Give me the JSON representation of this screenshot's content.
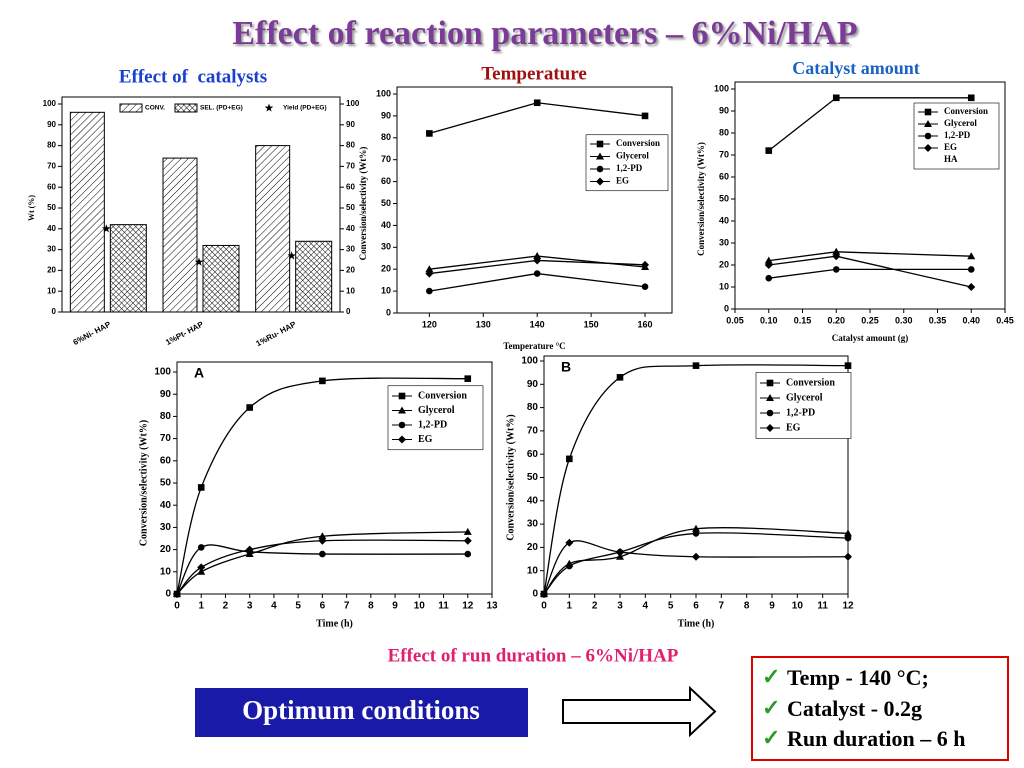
{
  "title": "Effect of reaction parameters – 6%Ni/HAP",
  "caption": "Effect of run duration – 6%Ni/HAP",
  "button": "Optimum conditions",
  "conditions": [
    "Temp - 140 °C;",
    "Catalyst - 0.2g",
    "Run duration – 6 h"
  ],
  "chart_data": [
    {
      "type": "bar",
      "title": "Effect of  catalysts",
      "ylabel": "Wt (%)",
      "categories": [
        "6%Ni- HAP",
        "1%Pt- HAP",
        "1%Ru- HAP"
      ],
      "series": [
        {
          "name": "CONV.",
          "pattern": "hatch",
          "values": [
            96,
            74,
            80
          ]
        },
        {
          "name": "SEL. (PD+EG)",
          "pattern": "crosshatch",
          "values": [
            42,
            32,
            34
          ]
        },
        {
          "name": "Yield (PD+EG)",
          "marker": "star",
          "values": [
            40,
            24,
            27
          ]
        }
      ],
      "ylim": [
        0,
        100
      ],
      "yticks": [
        0,
        10,
        20,
        30,
        40,
        50,
        60,
        70,
        80,
        90,
        100
      ],
      "y2lim": [
        0,
        100
      ],
      "y2ticks": [
        0,
        10,
        20,
        30,
        40,
        50,
        60,
        70,
        80,
        90,
        100
      ]
    },
    {
      "type": "line",
      "title": "Temperature",
      "xlabel": "Temperature °C",
      "ylabel": "Conversion/selectivity (Wt%)",
      "x": [
        120,
        140,
        160
      ],
      "xlim": [
        114,
        165
      ],
      "xticks": [
        120,
        130,
        140,
        150,
        160
      ],
      "ylim": [
        0,
        100
      ],
      "yticks": [
        0,
        10,
        20,
        30,
        40,
        50,
        60,
        70,
        80,
        90,
        100
      ],
      "series": [
        {
          "name": "Conversion",
          "marker": "square",
          "color": "#000000",
          "values": [
            82,
            96,
            90
          ]
        },
        {
          "name": "Glycerol",
          "marker": "triangle",
          "color": "#000000",
          "values": [
            20,
            26,
            21
          ]
        },
        {
          "name": "1,2-PD",
          "marker": "circle",
          "color": "#000000",
          "values": [
            10,
            18,
            12
          ]
        },
        {
          "name": "EG",
          "marker": "diamond",
          "color": "#000000",
          "values": [
            18,
            24,
            22
          ]
        }
      ]
    },
    {
      "type": "line",
      "title": "Catalyst amount",
      "xlabel": "Catalyst amount (g)",
      "ylabel": "Conversion/selectivity (Wt%)",
      "legend_note": "HA",
      "x": [
        0.1,
        0.2,
        0.4
      ],
      "xlim": [
        0.05,
        0.45
      ],
      "xticks": [
        0.05,
        {
          "value": 0.1,
          "label": "0.10"
        },
        0.15,
        {
          "value": 0.2,
          "label": "0.20"
        },
        0.25,
        {
          "value": 0.3,
          "label": "0.30"
        },
        0.35,
        {
          "value": 0.4,
          "label": "0.40"
        },
        0.45
      ],
      "ylim": [
        0,
        100
      ],
      "yticks": [
        0,
        10,
        20,
        30,
        40,
        50,
        60,
        70,
        80,
        90,
        100
      ],
      "series": [
        {
          "name": "Conversion",
          "marker": "square",
          "color": "#000000",
          "values": [
            72,
            96,
            96
          ]
        },
        {
          "name": "Glycerol",
          "marker": "triangle",
          "color": "#000000",
          "values": [
            22,
            26,
            24
          ]
        },
        {
          "name": "1,2-PD",
          "marker": "circle",
          "color": "#000000",
          "values": [
            14,
            18,
            18
          ]
        },
        {
          "name": "EG",
          "marker": "diamond",
          "color": "#000000",
          "values": [
            20,
            24,
            10
          ]
        }
      ]
    },
    {
      "type": "line",
      "smooth": true,
      "annotation": "A",
      "xlabel": "Time (h)",
      "ylabel": "Conversion/selectivity (Wt%)",
      "x": [
        0,
        1,
        3,
        6,
        12
      ],
      "xlim": [
        0,
        13
      ],
      "xticks": [
        0,
        1,
        2,
        3,
        4,
        5,
        6,
        7,
        8,
        9,
        10,
        11,
        12,
        13
      ],
      "ylim": [
        0,
        100
      ],
      "yticks": [
        0,
        10,
        20,
        30,
        40,
        50,
        60,
        70,
        80,
        90,
        100
      ],
      "series": [
        {
          "name": "Conversion",
          "marker": "square",
          "color": "#000000",
          "values": [
            0,
            48,
            84,
            96,
            97
          ]
        },
        {
          "name": "Glycerol",
          "marker": "triangle",
          "color": "#000000",
          "values": [
            0,
            10,
            18,
            26,
            28
          ]
        },
        {
          "name": "1,2-PD",
          "marker": "circle",
          "color": "#000000",
          "values": [
            0,
            21,
            19,
            18,
            18
          ]
        },
        {
          "name": "EG",
          "marker": "diamond",
          "color": "#000000",
          "values": [
            0,
            12,
            20,
            24,
            24
          ]
        }
      ]
    },
    {
      "type": "line",
      "smooth": true,
      "annotation": "B",
      "xlabel": "Time (h)",
      "ylabel": "Conversion/selectivity (Wt%)",
      "x": [
        0,
        1,
        3,
        6,
        12
      ],
      "xlim": [
        0,
        12
      ],
      "xticks": [
        0,
        1,
        2,
        3,
        4,
        5,
        6,
        7,
        8,
        9,
        10,
        11,
        12
      ],
      "ylim": [
        0,
        100
      ],
      "yticks": [
        0,
        10,
        20,
        30,
        40,
        50,
        60,
        70,
        80,
        90,
        100
      ],
      "series": [
        {
          "name": "Conversion",
          "marker": "square",
          "color": "#000000",
          "values": [
            0,
            58,
            93,
            98,
            98
          ]
        },
        {
          "name": "Glycerol",
          "marker": "triangle",
          "color": "#000000",
          "values": [
            0,
            13,
            16,
            28,
            26
          ]
        },
        {
          "name": "1,2-PD",
          "marker": "circle",
          "color": "#000000",
          "values": [
            0,
            12,
            18,
            26,
            24
          ]
        },
        {
          "name": "EG",
          "marker": "diamond",
          "color": "#000000",
          "values": [
            0,
            22,
            18,
            16,
            16
          ]
        }
      ]
    }
  ]
}
